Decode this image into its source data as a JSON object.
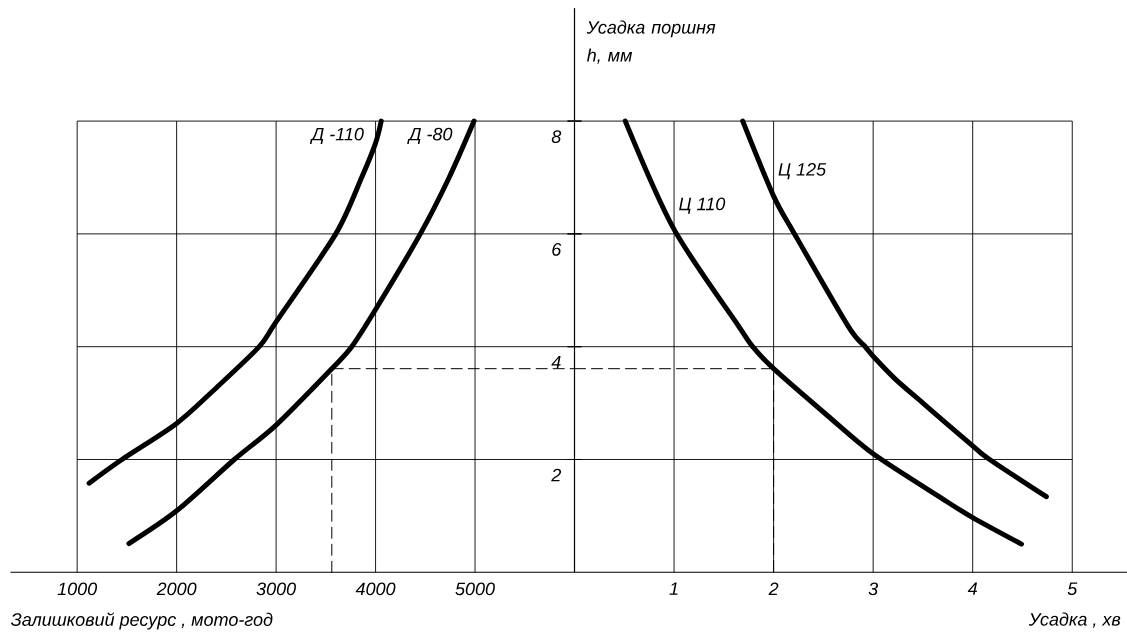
{
  "chart_data": [
    {
      "type": "line",
      "xlabel": "Залишковий ресурс , мото-год",
      "xlim": [
        330,
        6000
      ],
      "xticks": [
        1000,
        2000,
        3000,
        4000,
        5000
      ],
      "ylim": [
        0,
        10
      ],
      "yticks": [
        2,
        4,
        6,
        8
      ],
      "grid": true,
      "series": [
        {
          "name": "Д -110",
          "color": "#000000",
          "x": [
            1120,
            1450,
            2000,
            2410,
            2830,
            3000,
            3600,
            3860,
            4000,
            4057
          ],
          "values": [
            1.58,
            2.0,
            2.64,
            3.29,
            4.0,
            4.44,
            6.0,
            7.0,
            7.61,
            8.0
          ]
        },
        {
          "name": "Д -80",
          "color": "#000000",
          "x": [
            1520,
            2000,
            2580,
            3000,
            3560,
            3760,
            4000,
            4450,
            4740,
            4990
          ],
          "values": [
            0.51,
            1.09,
            2.0,
            2.61,
            3.61,
            4.0,
            4.66,
            6.0,
            7.0,
            8.0
          ]
        },
        {
          "color": "#000000",
          "line_style": "dashed",
          "x": [
            3560,
            3560,
            6000
          ],
          "values": [
            0,
            3.61,
            3.61
          ]
        }
      ]
    },
    {
      "type": "line",
      "xlabel": "Усадка , хв",
      "ylabel": "Усадка поршня h, мм",
      "xlim": [
        0,
        5.55
      ],
      "xticks": [
        1,
        2,
        3,
        4,
        5
      ],
      "ylim": [
        0,
        10
      ],
      "yticks": [
        2,
        4,
        6,
        8
      ],
      "grid": true,
      "tick_labels": "x",
      "series": [
        {
          "name": "Ц 125",
          "color": "#000000",
          "x": [
            1.69,
            2.0,
            2.21,
            2.75,
            2.92,
            3.0,
            3.22,
            3.5,
            4.0,
            4.17,
            4.74
          ],
          "values": [
            8.0,
            6.67,
            6.0,
            4.36,
            4.0,
            3.83,
            3.43,
            3.0,
            2.24,
            2.0,
            1.34
          ]
        },
        {
          "name": "Ц 110",
          "color": "#000000",
          "x": [
            0.51,
            1.0,
            1.65,
            1.79,
            2.0,
            2.54,
            3.0,
            3.69,
            4.0,
            4.49
          ],
          "values": [
            8.0,
            6.08,
            4.36,
            4.0,
            3.61,
            2.78,
            2.1,
            1.31,
            0.97,
            0.5
          ]
        },
        {
          "color": "#000000",
          "line_style": "dashed",
          "x": [
            0,
            2,
            2
          ],
          "values": [
            3.61,
            3.61,
            0
          ]
        }
      ]
    }
  ]
}
